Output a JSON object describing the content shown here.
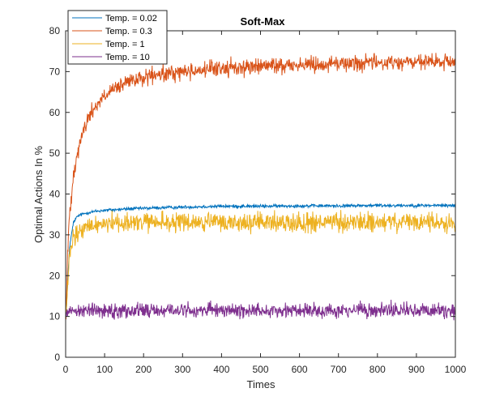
{
  "chart_data": {
    "type": "line",
    "title": "Soft-Max",
    "xlabel": "Times",
    "ylabel": "Optimal Actions In %",
    "xlim": [
      0,
      1000
    ],
    "ylim": [
      0,
      80
    ],
    "xticks": [
      0,
      100,
      200,
      300,
      400,
      500,
      600,
      700,
      800,
      900,
      1000
    ],
    "yticks": [
      0,
      10,
      20,
      30,
      40,
      50,
      60,
      70,
      80
    ],
    "grid": false,
    "legend_position": "top-left",
    "series": [
      {
        "name": "Temp. = 0.02",
        "color": "#0072BD",
        "x": [
          1,
          10,
          20,
          30,
          40,
          60,
          80,
          100,
          150,
          200,
          300,
          400,
          500,
          600,
          700,
          800,
          900,
          1000
        ],
        "values": [
          10,
          27,
          33,
          34.5,
          35,
          35.5,
          35.8,
          36,
          36.3,
          36.5,
          36.8,
          37,
          37,
          37.1,
          37.1,
          37.2,
          37.2,
          37.2
        ],
        "noise": 0.2
      },
      {
        "name": "Temp. = 0.3",
        "color": "#D95319",
        "x": [
          1,
          5,
          10,
          20,
          30,
          40,
          60,
          80,
          100,
          150,
          200,
          300,
          400,
          500,
          600,
          700,
          800,
          900,
          1000
        ],
        "values": [
          10,
          25,
          35,
          45,
          50,
          54,
          59,
          62,
          64,
          67,
          68.5,
          70,
          70.8,
          71.3,
          71.7,
          72,
          72.2,
          72.3,
          72.3
        ],
        "noise": 1.0
      },
      {
        "name": "Temp. = 1",
        "color": "#EDB120",
        "x": [
          1,
          10,
          20,
          40,
          60,
          100,
          150,
          200,
          300,
          400,
          500,
          600,
          700,
          800,
          900,
          1000
        ],
        "values": [
          10,
          25,
          29,
          31,
          32,
          33,
          33,
          33,
          33,
          33,
          33,
          33,
          33,
          33,
          33,
          33
        ],
        "noise": 1.2
      },
      {
        "name": "Temp. = 10",
        "color": "#7E2F8E",
        "x": [
          1,
          100,
          200,
          300,
          400,
          500,
          600,
          700,
          800,
          900,
          1000
        ],
        "values": [
          11.5,
          11.5,
          11.5,
          11.5,
          11.5,
          11.5,
          11.5,
          11.5,
          11.5,
          11.5,
          11.5
        ],
        "noise": 0.9
      }
    ]
  }
}
